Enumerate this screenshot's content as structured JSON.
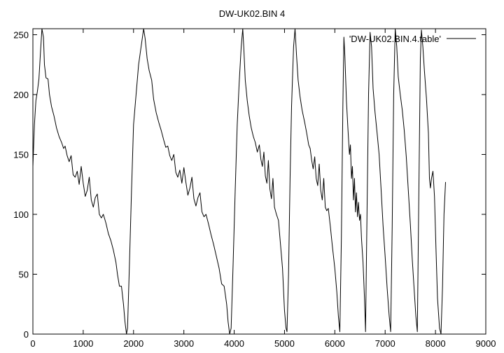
{
  "chart_data": {
    "type": "line",
    "title": "DW-UK02.BIN 4",
    "xlabel": "",
    "ylabel": "",
    "xlim": [
      0,
      9000
    ],
    "ylim": [
      0,
      255
    ],
    "x_ticks": [
      0,
      1000,
      2000,
      3000,
      4000,
      5000,
      6000,
      7000,
      8000,
      9000
    ],
    "y_ticks": [
      0,
      50,
      100,
      150,
      200,
      250
    ],
    "grid": false,
    "legend": {
      "placement": "top-right",
      "entries": [
        "'DW-UK02.BIN.4.table'"
      ]
    },
    "series": [
      {
        "name": "'DW-UK02.BIN.4.table'",
        "color": "#000000",
        "points": [
          [
            0,
            140
          ],
          [
            30,
            175
          ],
          [
            60,
            195
          ],
          [
            90,
            203
          ],
          [
            120,
            213
          ],
          [
            150,
            235
          ],
          [
            180,
            255
          ],
          [
            210,
            248
          ],
          [
            230,
            225
          ],
          [
            260,
            214
          ],
          [
            300,
            213
          ],
          [
            330,
            200
          ],
          [
            370,
            190
          ],
          [
            420,
            182
          ],
          [
            470,
            172
          ],
          [
            520,
            165
          ],
          [
            570,
            160
          ],
          [
            610,
            155
          ],
          [
            640,
            157
          ],
          [
            680,
            149
          ],
          [
            720,
            144
          ],
          [
            760,
            149
          ],
          [
            800,
            133
          ],
          [
            840,
            131
          ],
          [
            880,
            136
          ],
          [
            920,
            125
          ],
          [
            960,
            140
          ],
          [
            1000,
            126
          ],
          [
            1040,
            115
          ],
          [
            1080,
            120
          ],
          [
            1120,
            131
          ],
          [
            1160,
            112
          ],
          [
            1200,
            106
          ],
          [
            1240,
            114
          ],
          [
            1280,
            117
          ],
          [
            1320,
            100
          ],
          [
            1360,
            97
          ],
          [
            1400,
            100
          ],
          [
            1450,
            93
          ],
          [
            1500,
            84
          ],
          [
            1550,
            78
          ],
          [
            1600,
            70
          ],
          [
            1650,
            60
          ],
          [
            1680,
            50
          ],
          [
            1720,
            40
          ],
          [
            1760,
            40
          ],
          [
            1800,
            25
          ],
          [
            1830,
            10
          ],
          [
            1860,
            0
          ],
          [
            1880,
            5
          ],
          [
            1920,
            60
          ],
          [
            1960,
            120
          ],
          [
            2000,
            175
          ],
          [
            2050,
            200
          ],
          [
            2100,
            225
          ],
          [
            2150,
            240
          ],
          [
            2200,
            255
          ],
          [
            2230,
            247
          ],
          [
            2270,
            230
          ],
          [
            2310,
            220
          ],
          [
            2360,
            212
          ],
          [
            2400,
            196
          ],
          [
            2450,
            185
          ],
          [
            2500,
            177
          ],
          [
            2550,
            170
          ],
          [
            2600,
            162
          ],
          [
            2640,
            156
          ],
          [
            2680,
            157
          ],
          [
            2720,
            149
          ],
          [
            2760,
            145
          ],
          [
            2800,
            150
          ],
          [
            2840,
            135
          ],
          [
            2880,
            131
          ],
          [
            2920,
            137
          ],
          [
            2960,
            126
          ],
          [
            3000,
            139
          ],
          [
            3040,
            127
          ],
          [
            3080,
            116
          ],
          [
            3120,
            122
          ],
          [
            3160,
            131
          ],
          [
            3200,
            113
          ],
          [
            3240,
            107
          ],
          [
            3280,
            114
          ],
          [
            3320,
            118
          ],
          [
            3360,
            102
          ],
          [
            3400,
            98
          ],
          [
            3440,
            100
          ],
          [
            3490,
            92
          ],
          [
            3540,
            83
          ],
          [
            3590,
            75
          ],
          [
            3640,
            66
          ],
          [
            3700,
            55
          ],
          [
            3750,
            42
          ],
          [
            3800,
            40
          ],
          [
            3850,
            25
          ],
          [
            3880,
            10
          ],
          [
            3910,
            0
          ],
          [
            3940,
            5
          ],
          [
            3980,
            60
          ],
          [
            4020,
            120
          ],
          [
            4060,
            175
          ],
          [
            4100,
            210
          ],
          [
            4140,
            240
          ],
          [
            4170,
            255
          ],
          [
            4190,
            240
          ],
          [
            4220,
            212
          ],
          [
            4260,
            195
          ],
          [
            4300,
            182
          ],
          [
            4340,
            172
          ],
          [
            4380,
            165
          ],
          [
            4420,
            160
          ],
          [
            4460,
            152
          ],
          [
            4500,
            158
          ],
          [
            4530,
            146
          ],
          [
            4560,
            140
          ],
          [
            4590,
            152
          ],
          [
            4620,
            132
          ],
          [
            4650,
            126
          ],
          [
            4680,
            145
          ],
          [
            4710,
            121
          ],
          [
            4740,
            113
          ],
          [
            4770,
            130
          ],
          [
            4800,
            106
          ],
          [
            4840,
            100
          ],
          [
            4880,
            95
          ],
          [
            4920,
            75
          ],
          [
            4960,
            55
          ],
          [
            5000,
            20
          ],
          [
            5030,
            5
          ],
          [
            5050,
            2
          ],
          [
            5080,
            50
          ],
          [
            5110,
            130
          ],
          [
            5140,
            190
          ],
          [
            5180,
            240
          ],
          [
            5210,
            255
          ],
          [
            5240,
            232
          ],
          [
            5270,
            212
          ],
          [
            5310,
            198
          ],
          [
            5350,
            187
          ],
          [
            5400,
            177
          ],
          [
            5440,
            168
          ],
          [
            5480,
            158
          ],
          [
            5510,
            155
          ],
          [
            5540,
            145
          ],
          [
            5570,
            138
          ],
          [
            5600,
            148
          ],
          [
            5630,
            130
          ],
          [
            5660,
            124
          ],
          [
            5690,
            142
          ],
          [
            5720,
            120
          ],
          [
            5750,
            112
          ],
          [
            5780,
            130
          ],
          [
            5810,
            106
          ],
          [
            5840,
            103
          ],
          [
            5870,
            105
          ],
          [
            5910,
            90
          ],
          [
            5950,
            74
          ],
          [
            6000,
            55
          ],
          [
            6040,
            35
          ],
          [
            6070,
            15
          ],
          [
            6100,
            2
          ],
          [
            6130,
            80
          ],
          [
            6160,
            190
          ],
          [
            6180,
            248
          ],
          [
            6200,
            232
          ],
          [
            6230,
            195
          ],
          [
            6260,
            172
          ],
          [
            6290,
            150
          ],
          [
            6310,
            158
          ],
          [
            6330,
            130
          ],
          [
            6350,
            140
          ],
          [
            6370,
            112
          ],
          [
            6390,
            130
          ],
          [
            6410,
            102
          ],
          [
            6430,
            118
          ],
          [
            6450,
            98
          ],
          [
            6470,
            110
          ],
          [
            6490,
            95
          ],
          [
            6510,
            100
          ],
          [
            6530,
            80
          ],
          [
            6560,
            60
          ],
          [
            6590,
            30
          ],
          [
            6610,
            2
          ],
          [
            6640,
            100
          ],
          [
            6670,
            200
          ],
          [
            6700,
            252
          ],
          [
            6730,
            240
          ],
          [
            6760,
            205
          ],
          [
            6800,
            185
          ],
          [
            6840,
            168
          ],
          [
            6880,
            150
          ],
          [
            6920,
            120
          ],
          [
            6960,
            90
          ],
          [
            7000,
            65
          ],
          [
            7040,
            38
          ],
          [
            7080,
            15
          ],
          [
            7110,
            2
          ],
          [
            7140,
            90
          ],
          [
            7170,
            200
          ],
          [
            7200,
            255
          ],
          [
            7230,
            240
          ],
          [
            7260,
            215
          ],
          [
            7300,
            200
          ],
          [
            7340,
            187
          ],
          [
            7380,
            170
          ],
          [
            7420,
            148
          ],
          [
            7460,
            120
          ],
          [
            7500,
            92
          ],
          [
            7540,
            62
          ],
          [
            7580,
            35
          ],
          [
            7610,
            15
          ],
          [
            7640,
            2
          ],
          [
            7670,
            120
          ],
          [
            7700,
            230
          ],
          [
            7720,
            254
          ],
          [
            7750,
            240
          ],
          [
            7780,
            220
          ],
          [
            7820,
            197
          ],
          [
            7860,
            168
          ],
          [
            7880,
            130
          ],
          [
            7900,
            122
          ],
          [
            7920,
            130
          ],
          [
            7950,
            136
          ],
          [
            7980,
            115
          ],
          [
            8010,
            72
          ],
          [
            8040,
            30
          ],
          [
            8080,
            5
          ],
          [
            8110,
            0
          ],
          [
            8140,
            40
          ],
          [
            8170,
            100
          ],
          [
            8200,
            127
          ]
        ]
      }
    ]
  }
}
